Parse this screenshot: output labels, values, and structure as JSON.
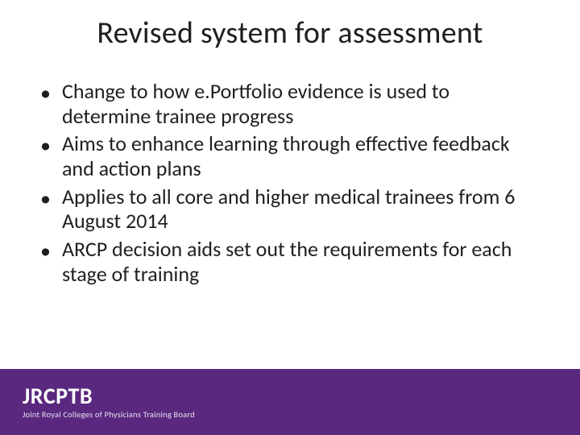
{
  "slide": {
    "title": "Revised system for assessment",
    "title_fontsize": 38,
    "title_color": "#1f1f1f",
    "background_color": "#ffffff",
    "bullets": [
      "Change to how e.Portfolio evidence is used to determine trainee progress",
      "Aims to enhance learning through effective feedback and action plans",
      "Applies to all core and higher medical trainees from 6 August 2014",
      "ARCP decision aids set out the requirements for each stage of training"
    ],
    "bullet_fontsize": 26,
    "bullet_color": "#1f1f1f",
    "bullet_marker": "•"
  },
  "footer": {
    "band_color": "#5a287f",
    "logo_main": "JRCPTB",
    "logo_sub": "Joint Royal Colleges of Physicians Training Board",
    "text_color": "#ffffff"
  }
}
